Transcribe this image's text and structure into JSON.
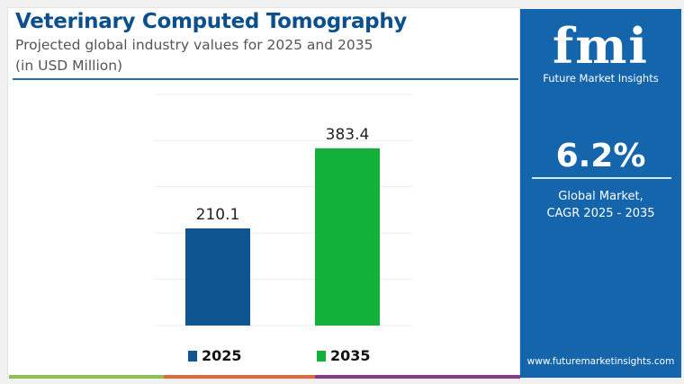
{
  "header": {
    "title": "Veterinary Computed Tomography",
    "subtitle": "Projected global industry values for 2025 and 2035",
    "unit": "(in USD Million)"
  },
  "chart_data": {
    "type": "bar",
    "categories": [
      "2025",
      "2035"
    ],
    "values": [
      210.1,
      383.4
    ],
    "labels": [
      "210.1",
      "383.4"
    ],
    "colors": [
      "#0f5592",
      "#12b23a"
    ],
    "ylim": [
      0,
      500
    ],
    "grid": true,
    "legend": "bottom",
    "title": "Veterinary Computed Tomography",
    "ylabel": "USD Million"
  },
  "panel": {
    "logo": "fmi",
    "logo_sub": "Future Market Insights",
    "cagr": "6.2%",
    "label1": "Global Market,",
    "label2": "CAGR 2025 - 2035",
    "url": "www.futuremarketinsights.com"
  }
}
